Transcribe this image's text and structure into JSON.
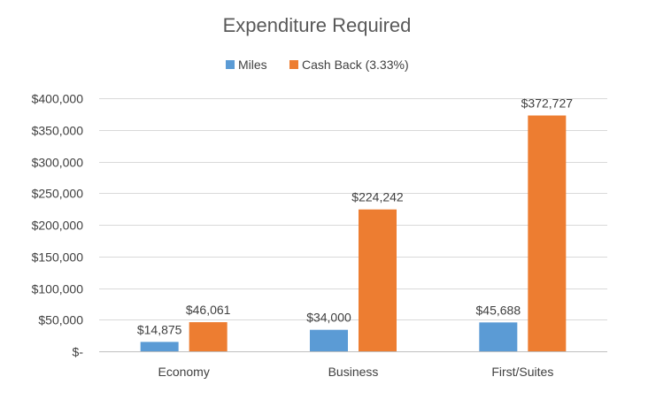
{
  "chart_data": {
    "type": "bar",
    "title": "Expenditure Required",
    "categories": [
      "Economy",
      "Business",
      "First/Suites"
    ],
    "series": [
      {
        "name": "Miles",
        "values": [
          14875,
          34000,
          45688
        ],
        "labels": [
          "$14,875",
          "$34,000",
          "$45,688"
        ],
        "color": "#5b9bd5"
      },
      {
        "name": "Cash Back (3.33%)",
        "values": [
          46061,
          224242,
          372727
        ],
        "labels": [
          "$46,061",
          "$224,242",
          "$372,727"
        ],
        "color": "#ed7d31"
      }
    ],
    "ylim": [
      0,
      400000
    ],
    "yticks": [
      0,
      50000,
      100000,
      150000,
      200000,
      250000,
      300000,
      350000,
      400000
    ],
    "ytick_labels": [
      "$-",
      "$50,000",
      "$100,000",
      "$150,000",
      "$200,000",
      "$250,000",
      "$300,000",
      "$350,000",
      "$400,000"
    ],
    "grid": true,
    "legend_position": "top"
  }
}
